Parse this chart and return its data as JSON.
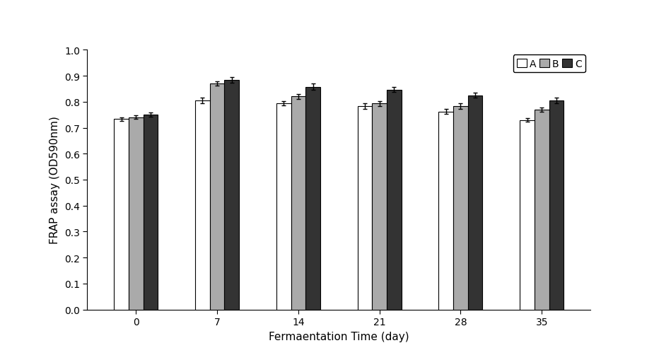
{
  "categories": [
    0,
    7,
    14,
    21,
    28,
    35
  ],
  "series": {
    "A": {
      "values": [
        0.733,
        0.805,
        0.795,
        0.783,
        0.762,
        0.73
      ],
      "errors": [
        0.008,
        0.01,
        0.008,
        0.01,
        0.01,
        0.008
      ],
      "color": "#FFFFFF",
      "edgecolor": "#000000",
      "label": "A"
    },
    "B": {
      "values": [
        0.74,
        0.87,
        0.82,
        0.793,
        0.783,
        0.77
      ],
      "errors": [
        0.007,
        0.008,
        0.01,
        0.01,
        0.01,
        0.008
      ],
      "color": "#AAAAAA",
      "edgecolor": "#000000",
      "label": "B"
    },
    "C": {
      "values": [
        0.75,
        0.884,
        0.858,
        0.847,
        0.825,
        0.805
      ],
      "errors": [
        0.008,
        0.01,
        0.012,
        0.01,
        0.01,
        0.01
      ],
      "color": "#333333",
      "edgecolor": "#000000",
      "label": "C"
    }
  },
  "xlabel": "Fermaentation Time (day)",
  "ylabel": "FRAP assay (OD590nm)",
  "ylim": [
    0.0,
    1.0
  ],
  "yticks": [
    0.0,
    0.1,
    0.2,
    0.3,
    0.4,
    0.5,
    0.6,
    0.7,
    0.8,
    0.9,
    1.0
  ],
  "bar_width": 0.18,
  "background_color": "#FFFFFF",
  "label_fontsize": 11,
  "tick_fontsize": 10,
  "legend_fontsize": 10
}
